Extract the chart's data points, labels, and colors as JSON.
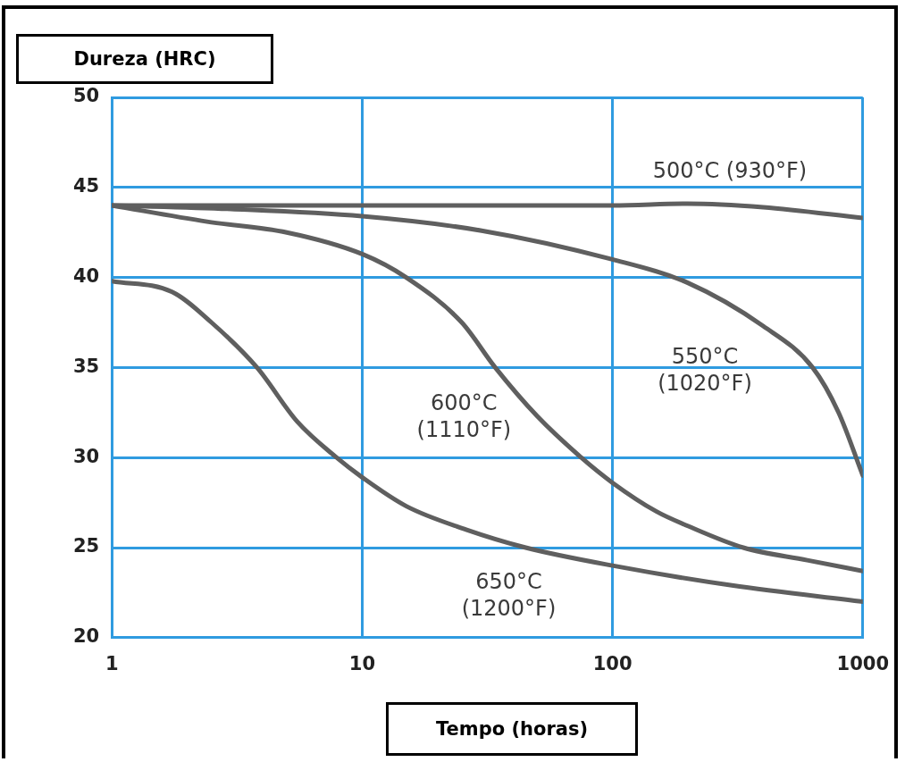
{
  "chart_data": {
    "type": "line",
    "xlabel": "Tempo (horas)",
    "ylabel": "Dureza (HRC)",
    "log": "x",
    "grid": true,
    "marker": "none",
    "line_style": "solid",
    "legend": false,
    "xlim": [
      1,
      1000
    ],
    "xticks": [
      1,
      10,
      100,
      1000
    ],
    "ylim": [
      20,
      50
    ],
    "yticks": [
      20,
      25,
      30,
      35,
      40,
      45,
      50
    ],
    "series": [
      {
        "name": "500°C (930°F)",
        "color": "#5f5f5f",
        "x": [
          1,
          10,
          100,
          200,
          400,
          1000
        ],
        "values": [
          44,
          44,
          44,
          44.1,
          43.9,
          43.3
        ]
      },
      {
        "name": "550°C\n(1020°F)",
        "color": "#5f5f5f",
        "x": [
          1,
          3,
          10,
          30,
          100,
          200,
          400,
          630,
          800,
          1000
        ],
        "values": [
          44,
          43.8,
          43.4,
          42.6,
          41,
          39.7,
          37.3,
          35,
          32.5,
          29
        ]
      },
      {
        "name": "600°C\n(1110°F)",
        "color": "#5f5f5f",
        "x": [
          1,
          2.4,
          5,
          10,
          15,
          25,
          34,
          50,
          75,
          100,
          150,
          200,
          333,
          600,
          1000
        ],
        "values": [
          44,
          43.1,
          42.5,
          41.3,
          40,
          37.5,
          35,
          32.3,
          30,
          28.6,
          27,
          26.2,
          25,
          24.3,
          23.7
        ]
      },
      {
        "name": "650°C\n(1200°F)",
        "color": "#5f5f5f",
        "x": [
          1,
          1.74,
          2.5,
          3.8,
          5.5,
          7.9,
          10,
          15,
          26,
          45,
          100,
          300,
          1000
        ],
        "values": [
          39.8,
          39.2,
          37.5,
          35,
          32,
          30,
          28.9,
          27.3,
          26,
          25,
          24,
          22.9,
          22
        ]
      }
    ]
  }
}
